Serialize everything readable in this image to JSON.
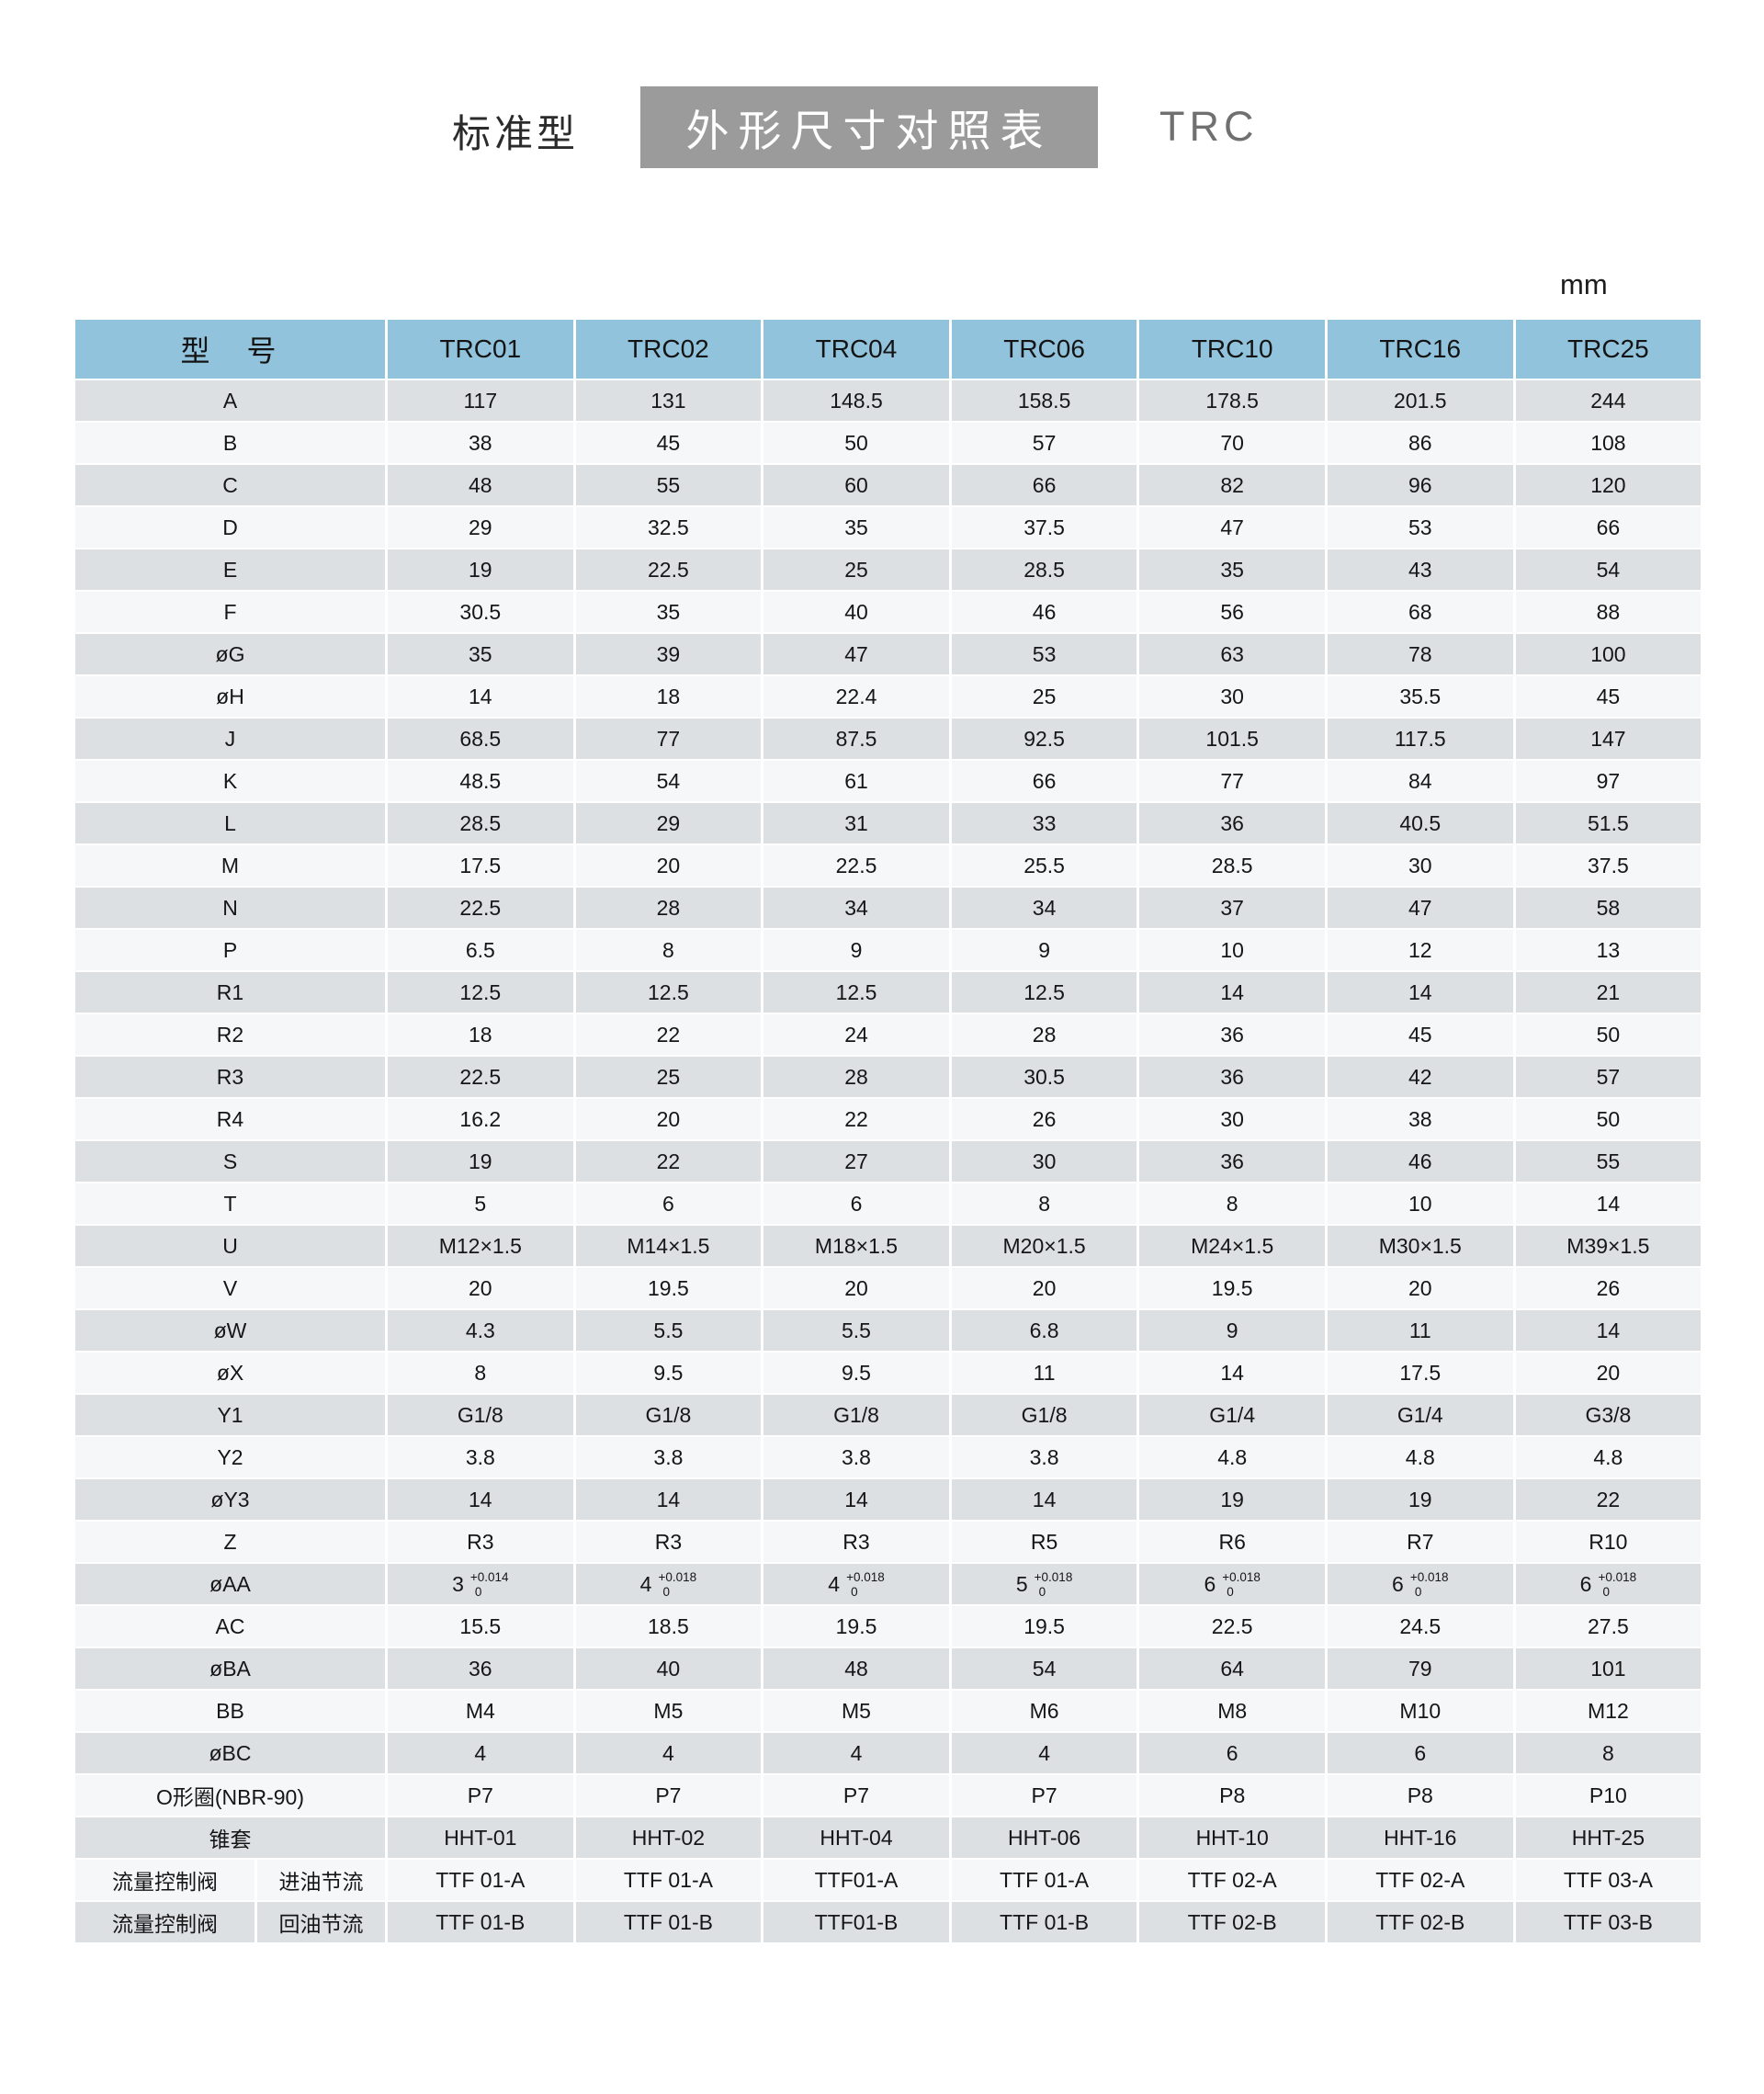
{
  "header": {
    "left_label": "标准型",
    "box_title": "外形尺寸对照表",
    "right_label": "TRC"
  },
  "unit_label": "mm",
  "colors": {
    "header_blue": "#92c3dd",
    "row_gray": "#dce0e3",
    "row_light": "#f5f7f9",
    "title_box_gray": "#9b9b9b"
  },
  "table": {
    "model_header": "型　号",
    "columns": [
      "TRC01",
      "TRC02",
      "TRC04",
      "TRC06",
      "TRC10",
      "TRC16",
      "TRC25"
    ],
    "rows": [
      {
        "label": "A",
        "values": [
          "117",
          "131",
          "148.5",
          "158.5",
          "178.5",
          "201.5",
          "244"
        ]
      },
      {
        "label": "B",
        "values": [
          "38",
          "45",
          "50",
          "57",
          "70",
          "86",
          "108"
        ]
      },
      {
        "label": "C",
        "values": [
          "48",
          "55",
          "60",
          "66",
          "82",
          "96",
          "120"
        ]
      },
      {
        "label": "D",
        "values": [
          "29",
          "32.5",
          "35",
          "37.5",
          "47",
          "53",
          "66"
        ]
      },
      {
        "label": "E",
        "values": [
          "19",
          "22.5",
          "25",
          "28.5",
          "35",
          "43",
          "54"
        ]
      },
      {
        "label": "F",
        "values": [
          "30.5",
          "35",
          "40",
          "46",
          "56",
          "68",
          "88"
        ]
      },
      {
        "label": "øG",
        "values": [
          "35",
          "39",
          "47",
          "53",
          "63",
          "78",
          "100"
        ]
      },
      {
        "label": "øH",
        "values": [
          "14",
          "18",
          "22.4",
          "25",
          "30",
          "35.5",
          "45"
        ]
      },
      {
        "label": "J",
        "values": [
          "68.5",
          "77",
          "87.5",
          "92.5",
          "101.5",
          "117.5",
          "147"
        ]
      },
      {
        "label": "K",
        "values": [
          "48.5",
          "54",
          "61",
          "66",
          "77",
          "84",
          "97"
        ]
      },
      {
        "label": "L",
        "values": [
          "28.5",
          "29",
          "31",
          "33",
          "36",
          "40.5",
          "51.5"
        ]
      },
      {
        "label": "M",
        "values": [
          "17.5",
          "20",
          "22.5",
          "25.5",
          "28.5",
          "30",
          "37.5"
        ]
      },
      {
        "label": "N",
        "values": [
          "22.5",
          "28",
          "34",
          "34",
          "37",
          "47",
          "58"
        ]
      },
      {
        "label": "P",
        "values": [
          "6.5",
          "8",
          "9",
          "9",
          "10",
          "12",
          "13"
        ]
      },
      {
        "label": "R1",
        "values": [
          "12.5",
          "12.5",
          "12.5",
          "12.5",
          "14",
          "14",
          "21"
        ]
      },
      {
        "label": "R2",
        "values": [
          "18",
          "22",
          "24",
          "28",
          "36",
          "45",
          "50"
        ]
      },
      {
        "label": "R3",
        "values": [
          "22.5",
          "25",
          "28",
          "30.5",
          "36",
          "42",
          "57"
        ]
      },
      {
        "label": "R4",
        "values": [
          "16.2",
          "20",
          "22",
          "26",
          "30",
          "38",
          "50"
        ]
      },
      {
        "label": "S",
        "values": [
          "19",
          "22",
          "27",
          "30",
          "36",
          "46",
          "55"
        ]
      },
      {
        "label": "T",
        "values": [
          "5",
          "6",
          "6",
          "8",
          "8",
          "10",
          "14"
        ]
      },
      {
        "label": "U",
        "values": [
          "M12×1.5",
          "M14×1.5",
          "M18×1.5",
          "M20×1.5",
          "M24×1.5",
          "M30×1.5",
          "M39×1.5"
        ]
      },
      {
        "label": "V",
        "values": [
          "20",
          "19.5",
          "20",
          "20",
          "19.5",
          "20",
          "26"
        ]
      },
      {
        "label": "øW",
        "values": [
          "4.3",
          "5.5",
          "5.5",
          "6.8",
          "9",
          "11",
          "14"
        ]
      },
      {
        "label": "øX",
        "values": [
          "8",
          "9.5",
          "9.5",
          "11",
          "14",
          "17.5",
          "20"
        ]
      },
      {
        "label": "Y1",
        "values": [
          "G1/8",
          "G1/8",
          "G1/8",
          "G1/8",
          "G1/4",
          "G1/4",
          "G3/8"
        ]
      },
      {
        "label": "Y2",
        "values": [
          "3.8",
          "3.8",
          "3.8",
          "3.8",
          "4.8",
          "4.8",
          "4.8"
        ]
      },
      {
        "label": "øY3",
        "values": [
          "14",
          "14",
          "14",
          "14",
          "19",
          "19",
          "22"
        ]
      },
      {
        "label": "Z",
        "values": [
          "R3",
          "R3",
          "R3",
          "R5",
          "R6",
          "R7",
          "R10"
        ]
      },
      {
        "label": "øAA",
        "values": [
          {
            "base": "3",
            "upper": "+0.014",
            "lower": "0"
          },
          {
            "base": "4",
            "upper": "+0.018",
            "lower": "0"
          },
          {
            "base": "4",
            "upper": "+0.018",
            "lower": "0"
          },
          {
            "base": "5",
            "upper": "+0.018",
            "lower": "0"
          },
          {
            "base": "6",
            "upper": "+0.018",
            "lower": "0"
          },
          {
            "base": "6",
            "upper": "+0.018",
            "lower": "0"
          },
          {
            "base": "6",
            "upper": "+0.018",
            "lower": "0"
          }
        ]
      },
      {
        "label": "AC",
        "values": [
          "15.5",
          "18.5",
          "19.5",
          "19.5",
          "22.5",
          "24.5",
          "27.5"
        ]
      },
      {
        "label": "øBA",
        "values": [
          "36",
          "40",
          "48",
          "54",
          "64",
          "79",
          "101"
        ]
      },
      {
        "label": "BB",
        "values": [
          "M4",
          "M5",
          "M5",
          "M6",
          "M8",
          "M10",
          "M12"
        ]
      },
      {
        "label": "øBC",
        "values": [
          "4",
          "4",
          "4",
          "4",
          "6",
          "6",
          "8"
        ]
      },
      {
        "label": "O形圈(NBR-90)",
        "values": [
          "P7",
          "P7",
          "P7",
          "P7",
          "P8",
          "P8",
          "P10"
        ]
      },
      {
        "label": "锥套",
        "values": [
          "HHT-01",
          "HHT-02",
          "HHT-04",
          "HHT-06",
          "HHT-10",
          "HHT-16",
          "HHT-25"
        ]
      },
      {
        "label_group": "流量控制阀",
        "label": "进油节流",
        "values": [
          "TTF 01-A",
          "TTF 01-A",
          "TTF01-A",
          "TTF 01-A",
          "TTF 02-A",
          "TTF 02-A",
          "TTF 03-A"
        ]
      },
      {
        "label_group": "流量控制阀",
        "label": "回油节流",
        "values": [
          "TTF 01-B",
          "TTF 01-B",
          "TTF01-B",
          "TTF 01-B",
          "TTF 02-B",
          "TTF 02-B",
          "TTF 03-B"
        ]
      }
    ]
  }
}
